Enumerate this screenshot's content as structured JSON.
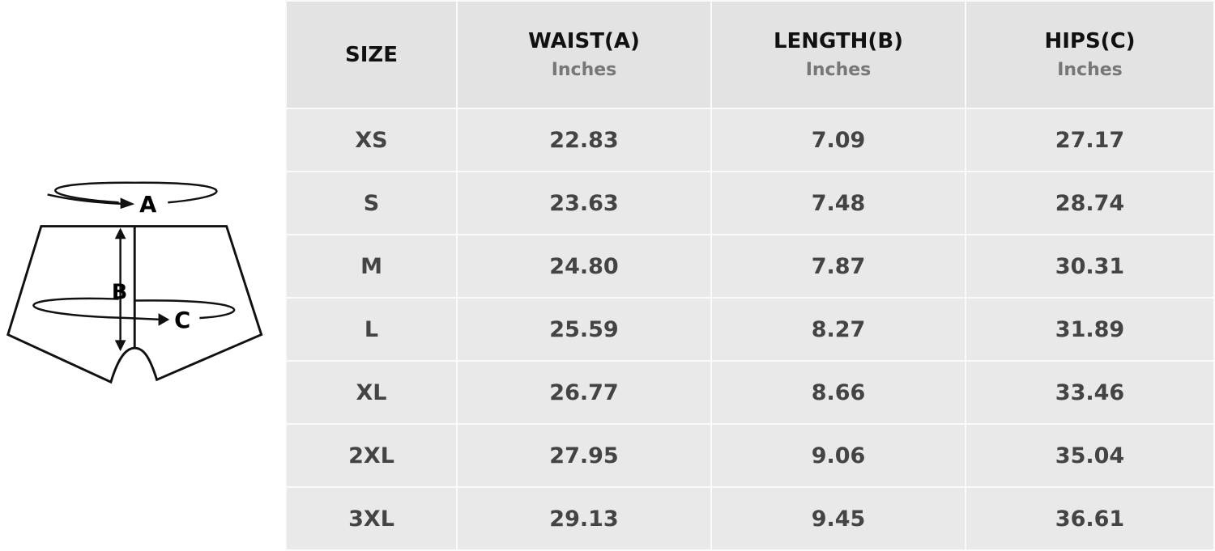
{
  "diagram": {
    "labels": {
      "waist": "A",
      "length": "B",
      "hips": "C"
    }
  },
  "table": {
    "headers": [
      {
        "title": "SIZE",
        "unit": ""
      },
      {
        "title": "WAIST(A)",
        "unit": "Inches"
      },
      {
        "title": "LENGTH(B)",
        "unit": "Inches"
      },
      {
        "title": "HIPS(C)",
        "unit": "Inches"
      }
    ],
    "rows": [
      [
        "XS",
        "22.83",
        "7.09",
        "27.17"
      ],
      [
        "S",
        "23.63",
        "7.48",
        "28.74"
      ],
      [
        "M",
        "24.80",
        "7.87",
        "30.31"
      ],
      [
        "L",
        "25.59",
        "8.27",
        "31.89"
      ],
      [
        "XL",
        "26.77",
        "8.66",
        "33.46"
      ],
      [
        "2XL",
        "27.95",
        "9.06",
        "35.04"
      ],
      [
        "3XL",
        "29.13",
        "9.45",
        "36.61"
      ]
    ]
  }
}
